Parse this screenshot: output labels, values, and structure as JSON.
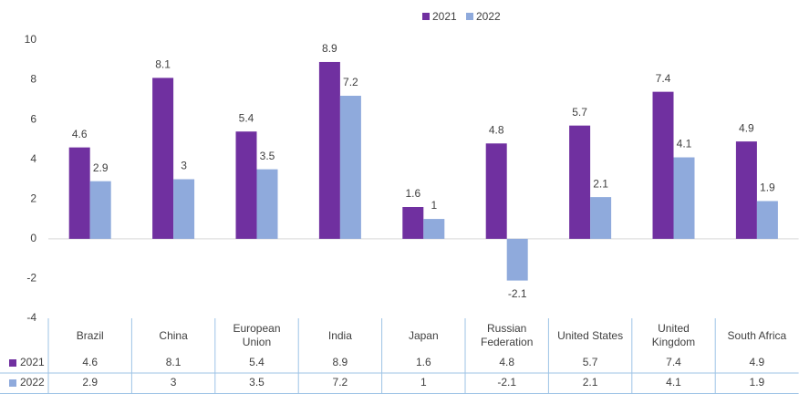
{
  "chart_data": {
    "type": "bar",
    "categories": [
      "Brazil",
      "China",
      "European Union",
      "India",
      "Japan",
      "Russian Federation",
      "United States",
      "United Kingdom",
      "South Africa"
    ],
    "series": [
      {
        "name": "2021",
        "color": "#7030a0",
        "values": [
          4.6,
          8.1,
          5.4,
          8.9,
          1.6,
          4.8,
          5.7,
          7.4,
          4.9
        ]
      },
      {
        "name": "2022",
        "color": "#8faadc",
        "values": [
          2.9,
          3,
          3.5,
          7.2,
          1,
          -2.1,
          2.1,
          4.1,
          1.9
        ]
      }
    ],
    "ylim": [
      -4,
      10
    ],
    "yticks": [
      -4,
      -2,
      0,
      2,
      4,
      6,
      8,
      10
    ],
    "grid": false,
    "legend": "top",
    "data_labels": true,
    "data_table": true
  }
}
